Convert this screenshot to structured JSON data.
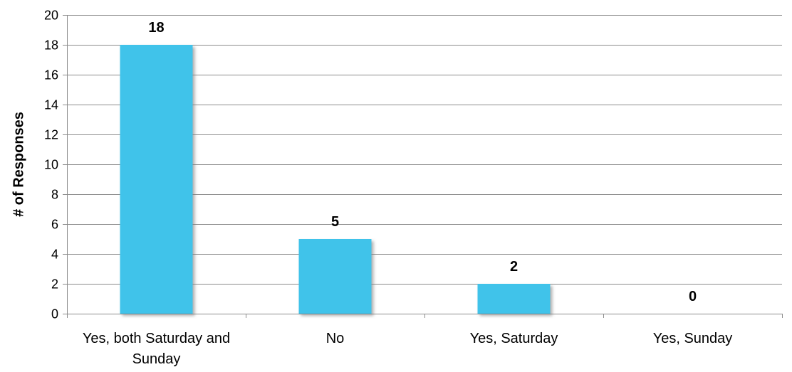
{
  "chart_data": {
    "type": "bar",
    "title": "",
    "xlabel": "",
    "ylabel": "# of Responses",
    "ylim": [
      0,
      20
    ],
    "ytick_step": 2,
    "grid": true,
    "legend": "none",
    "categories": [
      [
        "Yes, both Saturday and",
        "Sunday"
      ],
      [
        "No"
      ],
      [
        "Yes, Saturday"
      ],
      [
        "Yes, Sunday"
      ]
    ],
    "values": [
      18,
      5,
      2,
      0
    ],
    "data_labels": [
      "18",
      "5",
      "2",
      "0"
    ],
    "colors": {
      "bar": "#41c3ea",
      "bar_shadow": "#9a9a9a",
      "grid": "#8c8c8c"
    }
  }
}
